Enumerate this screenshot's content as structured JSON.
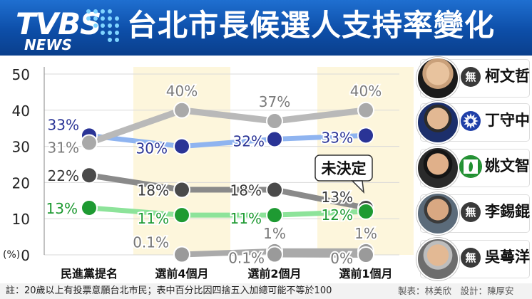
{
  "header": {
    "logo_text": "TVBS",
    "logo_sub": "NEWS",
    "title": "台北市長候選人支持率變化"
  },
  "legend": [
    {
      "name": "柯文哲",
      "party_badge": "無",
      "party": "independent"
    },
    {
      "name": "丁守中",
      "party_badge": "",
      "party": "kmt"
    },
    {
      "name": "姚文智",
      "party_badge": "",
      "party": "dpp"
    },
    {
      "name": "李錫錕",
      "party_badge": "無",
      "party": "independent"
    },
    {
      "name": "吳蕚洋",
      "party_badge": "無",
      "party": "independent"
    }
  ],
  "chart_data": {
    "type": "line",
    "categories": [
      "民進黨提名",
      "選前4個月",
      "選前2個月",
      "選前1個月"
    ],
    "yunit": "(%)",
    "ylim": [
      0,
      50
    ],
    "yticks": [
      0,
      10,
      20,
      30,
      40,
      50
    ],
    "series": [
      {
        "name": "柯文哲",
        "color": "#9e9e9e",
        "values": [
          31,
          40,
          37,
          40
        ],
        "labels": [
          "31%",
          "40%",
          "37%",
          "40%"
        ]
      },
      {
        "name": "丁守中",
        "color": "#2b3a9c",
        "values": [
          33,
          30,
          32,
          33
        ],
        "labels": [
          "33%",
          "30%",
          "32%",
          "33%"
        ]
      },
      {
        "name": "姚文智",
        "color": "#1f8f2f",
        "values": [
          13,
          11,
          11,
          12
        ],
        "labels": [
          "13%",
          "11%",
          "11%",
          "12%"
        ]
      },
      {
        "name": "未決定",
        "color": "#555555",
        "values": [
          22,
          18,
          18,
          13
        ],
        "labels": [
          "22%",
          "18%",
          "18%",
          "13%"
        ]
      },
      {
        "name": "李錫錕",
        "color": "#777777",
        "values": [
          null,
          0.1,
          1,
          1
        ],
        "labels": [
          "",
          "0.1%",
          "1%",
          "1%"
        ]
      },
      {
        "name": "吳蕚洋",
        "color": "#777777",
        "values": [
          null,
          null,
          0.1,
          0
        ],
        "labels": [
          "",
          "",
          "0.1%",
          "0%"
        ]
      }
    ],
    "callout": "未決定"
  },
  "footer": {
    "note": "註：20歲以上有投票意願台北市民；表中百分比因四捨五入加總可能不等於100",
    "credit": "製表：林美欣　設計：陳厚安"
  }
}
